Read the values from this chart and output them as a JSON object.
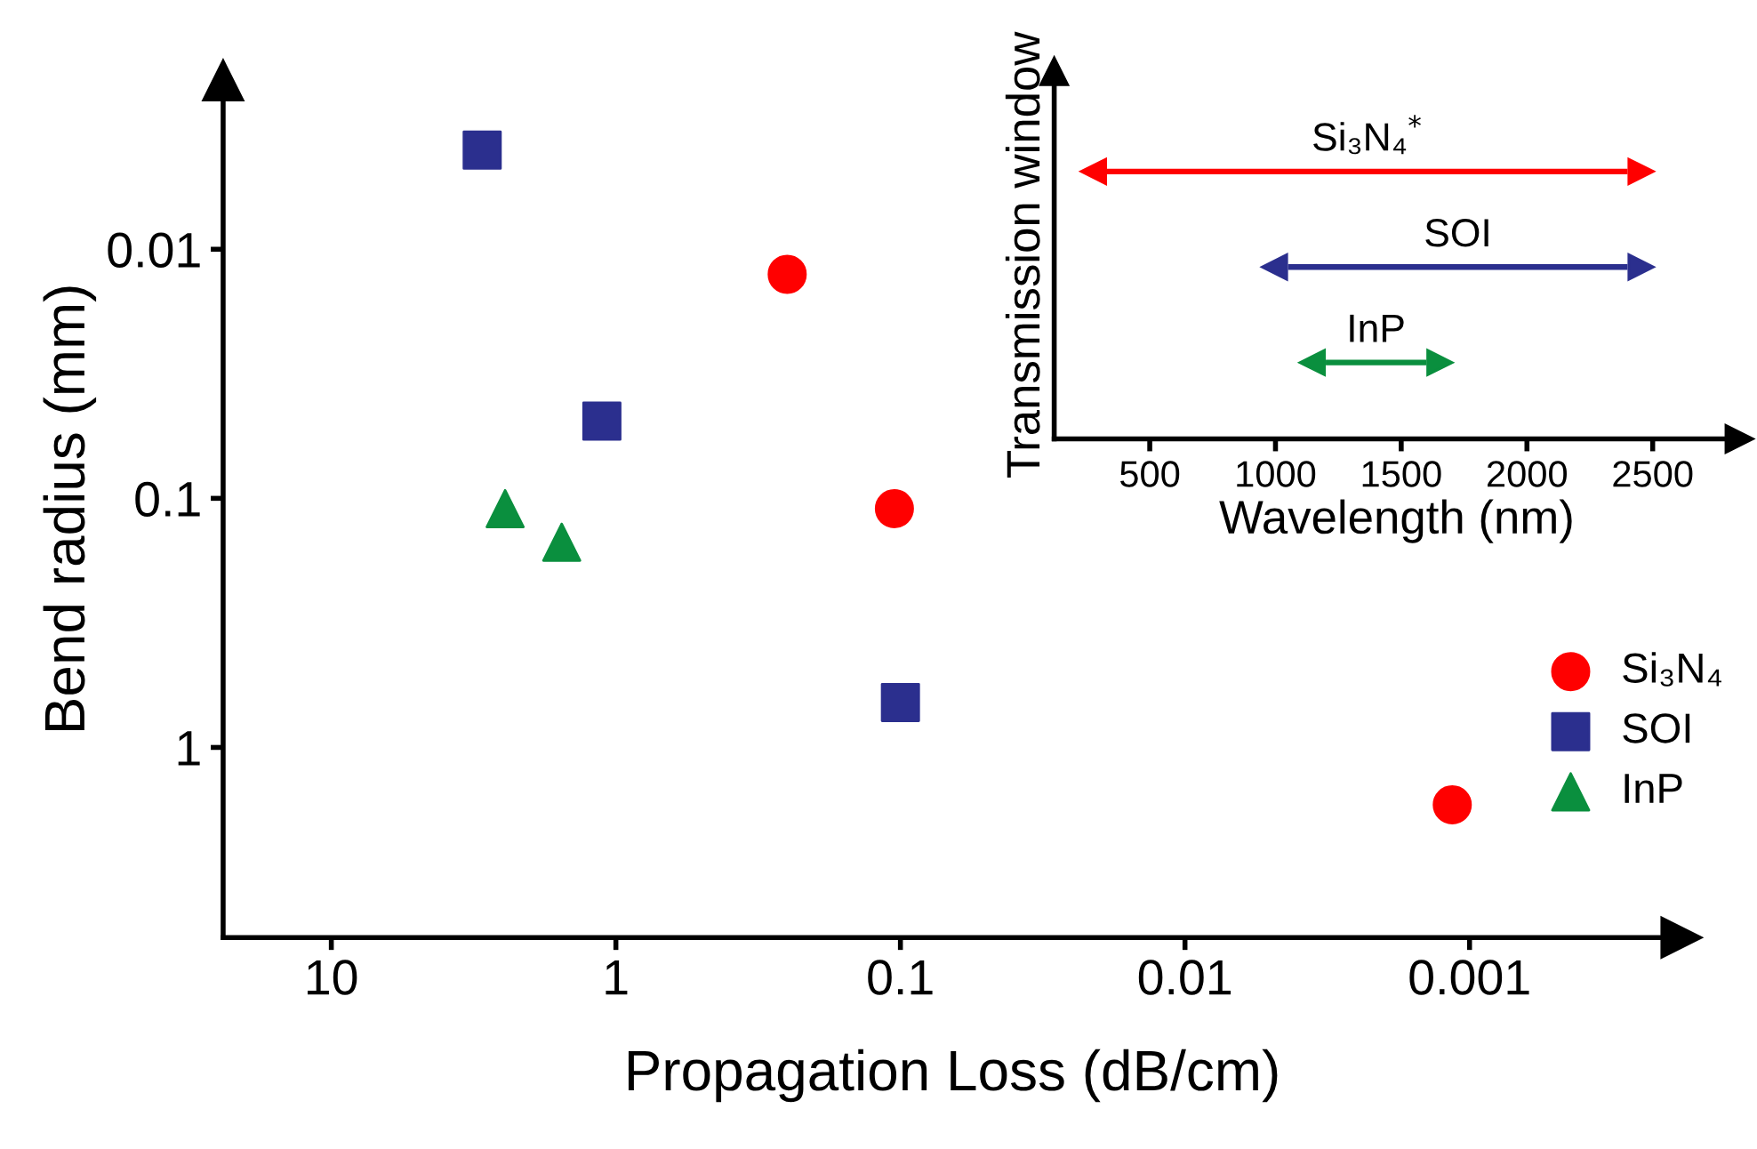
{
  "chart_data": [
    {
      "type": "scatter",
      "xlabel": "Propagation Loss (dB/cm)",
      "ylabel": "Bend radius (mm)",
      "log": "xy",
      "xlim": [
        24,
        0.00018
      ],
      "ylim": [
        5.8,
        0.0021
      ],
      "xticks": [
        10,
        1,
        0.1,
        0.01,
        0.001
      ],
      "yticks": [
        0.01,
        0.1,
        1
      ],
      "legend": "right",
      "grid": false,
      "series": [
        {
          "name": "Si₃N₄",
          "color": "#ff0000",
          "marker": "circle",
          "x": [
            0.25,
            0.105,
            0.00115
          ],
          "values": [
            0.0126,
            0.11,
            1.7
          ]
        },
        {
          "name": "SOI",
          "color": "#2b2f8e",
          "marker": "square",
          "x": [
            2.95,
            1.12,
            0.1
          ],
          "values": [
            0.004,
            0.049,
            0.66
          ]
        },
        {
          "name": "InP",
          "color": "#0a8f3e",
          "marker": "triangle",
          "x": [
            2.45,
            1.55
          ],
          "values": [
            0.11,
            0.15
          ]
        }
      ]
    },
    {
      "type": "bar",
      "orientation": "horizontal",
      "tick_labels": "x",
      "xlabel": "Wavelength (nm)",
      "ylabel": "Transmission window",
      "xlim": [
        120,
        2845
      ],
      "xticks": [
        500,
        1000,
        1500,
        2000,
        2500
      ],
      "categories": [
        "Si₃N₄$^{*}$",
        "SOI",
        "InP"
      ],
      "base": [
        330,
        1050,
        1200
      ],
      "values": [
        2070,
        1350,
        400
      ],
      "colors": [
        "#ff0000",
        "#2b2f8e",
        "#0a8f3e"
      ]
    }
  ]
}
